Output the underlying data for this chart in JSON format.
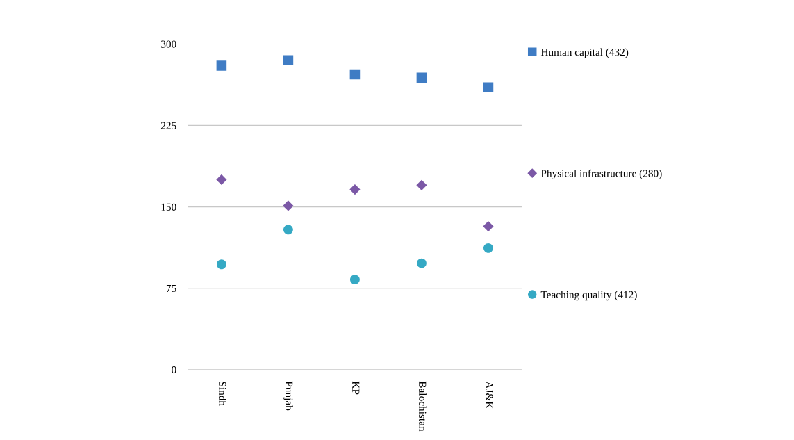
{
  "chart_data": {
    "type": "scatter",
    "categories": [
      "Sindh",
      "Punjab",
      "KP",
      "Balochistan",
      "AJ&K"
    ],
    "series": [
      {
        "name": "Human capital (432)",
        "color": "#3f7cc4",
        "marker": "square",
        "values": [
          280,
          285,
          272,
          269,
          260
        ]
      },
      {
        "name": "Physical infrastructure (280)",
        "color": "#7b58a6",
        "marker": "diamond",
        "values": [
          175,
          151,
          166,
          170,
          132
        ]
      },
      {
        "name": "Teaching quality (412)",
        "color": "#35a9c4",
        "marker": "circle",
        "values": [
          97,
          129,
          83,
          98,
          112
        ]
      }
    ],
    "ylim": [
      0,
      300
    ],
    "yticks": [
      0,
      75,
      150,
      225,
      300
    ],
    "grid": "y",
    "legend": "right"
  }
}
